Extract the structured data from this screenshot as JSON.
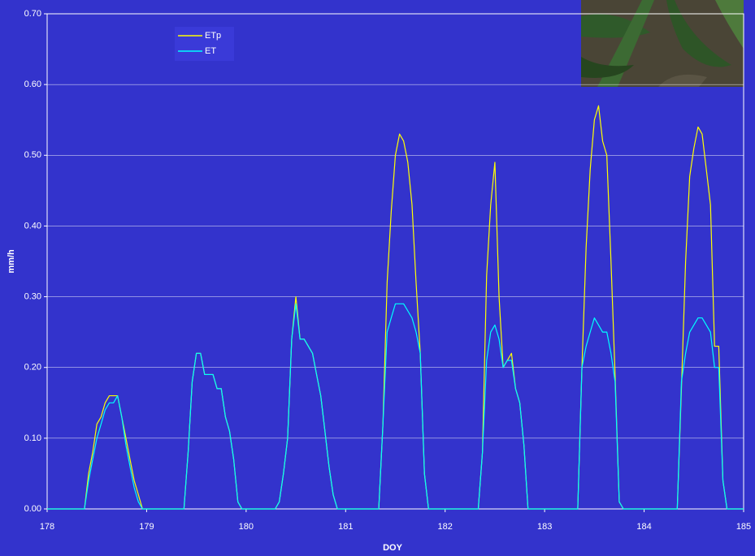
{
  "chart_data": {
    "type": "line",
    "xlabel": "DOY",
    "ylabel": "mm/h",
    "xlim": [
      178,
      185
    ],
    "ylim": [
      0,
      0.7
    ],
    "xticks": [
      178,
      179,
      180,
      181,
      182,
      183,
      184,
      185
    ],
    "yticks": [
      {
        "value": 0,
        "label": "0.00"
      },
      {
        "value": 0.1,
        "label": "0.10"
      },
      {
        "value": 0.2,
        "label": "0.20"
      },
      {
        "value": 0.3,
        "label": "0.30"
      },
      {
        "value": 0.4,
        "label": "0.40"
      },
      {
        "value": 0.5,
        "label": "0.50"
      },
      {
        "value": 0.6,
        "label": "0.60"
      },
      {
        "value": 0.7,
        "label": "0.70"
      }
    ],
    "grid": true,
    "legend": "upper left",
    "x": [
      178,
      178.042,
      178.083,
      178.125,
      178.167,
      178.208,
      178.25,
      178.292,
      178.333,
      178.375,
      178.417,
      178.458,
      178.5,
      178.542,
      178.583,
      178.625,
      178.667,
      178.708,
      178.75,
      178.792,
      178.833,
      178.875,
      178.917,
      178.958,
      179,
      179.042,
      179.083,
      179.125,
      179.167,
      179.208,
      179.25,
      179.292,
      179.333,
      179.375,
      179.417,
      179.458,
      179.5,
      179.542,
      179.583,
      179.625,
      179.667,
      179.708,
      179.75,
      179.792,
      179.833,
      179.875,
      179.917,
      179.958,
      180,
      180.042,
      180.083,
      180.125,
      180.167,
      180.208,
      180.25,
      180.292,
      180.333,
      180.375,
      180.417,
      180.458,
      180.5,
      180.542,
      180.583,
      180.625,
      180.667,
      180.708,
      180.75,
      180.792,
      180.833,
      180.875,
      180.917,
      180.958,
      181,
      181.042,
      181.083,
      181.125,
      181.167,
      181.208,
      181.25,
      181.292,
      181.333,
      181.375,
      181.417,
      181.458,
      181.5,
      181.542,
      181.583,
      181.625,
      181.667,
      181.708,
      181.75,
      181.792,
      181.833,
      181.875,
      181.917,
      181.958,
      182,
      182.042,
      182.083,
      182.125,
      182.167,
      182.208,
      182.25,
      182.292,
      182.333,
      182.375,
      182.417,
      182.458,
      182.5,
      182.542,
      182.583,
      182.625,
      182.667,
      182.708,
      182.75,
      182.792,
      182.833,
      182.875,
      182.917,
      182.958,
      183,
      183.042,
      183.083,
      183.125,
      183.167,
      183.208,
      183.25,
      183.292,
      183.333,
      183.375,
      183.417,
      183.458,
      183.5,
      183.542,
      183.583,
      183.625,
      183.667,
      183.708,
      183.75,
      183.792,
      183.833,
      183.875,
      183.917,
      183.958,
      184,
      184.042,
      184.083,
      184.125,
      184.167,
      184.208,
      184.25,
      184.292,
      184.333,
      184.375,
      184.417,
      184.458,
      184.5,
      184.542,
      184.583,
      184.625,
      184.667,
      184.708,
      184.75,
      184.792,
      184.833,
      184.875,
      184.917,
      184.958,
      185
    ],
    "series": [
      {
        "name": "ETp",
        "color": "#ffff00",
        "values": [
          0,
          0,
          0,
          0,
          0,
          0,
          0,
          0,
          0,
          0,
          0.05,
          0.08,
          0.12,
          0.13,
          0.15,
          0.16,
          0.16,
          0.16,
          0.13,
          0.1,
          0.07,
          0.04,
          0.02,
          0,
          0,
          0,
          0,
          0,
          0,
          0,
          0,
          0,
          0,
          0,
          0.08,
          0.18,
          0.22,
          0.22,
          0.19,
          0.19,
          0.19,
          0.17,
          0.17,
          0.13,
          0.11,
          0.07,
          0.01,
          0,
          0,
          0,
          0,
          0,
          0,
          0,
          0,
          0,
          0.01,
          0.05,
          0.1,
          0.24,
          0.3,
          0.24,
          0.24,
          0.23,
          0.22,
          0.19,
          0.16,
          0.11,
          0.06,
          0.02,
          0,
          0,
          0,
          0,
          0,
          0,
          0,
          0,
          0,
          0,
          0,
          0.12,
          0.32,
          0.42,
          0.5,
          0.53,
          0.52,
          0.49,
          0.43,
          0.32,
          0.22,
          0.05,
          0,
          0,
          0,
          0,
          0,
          0,
          0,
          0,
          0,
          0,
          0,
          0,
          0,
          0.08,
          0.33,
          0.43,
          0.49,
          0.3,
          0.2,
          0.21,
          0.22,
          0.17,
          0.15,
          0.09,
          0,
          0,
          0,
          0,
          0,
          0,
          0,
          0,
          0,
          0,
          0,
          0,
          0,
          0.2,
          0.37,
          0.48,
          0.55,
          0.57,
          0.52,
          0.5,
          0.35,
          0.19,
          0.01,
          0,
          0,
          0,
          0,
          0,
          0,
          0,
          0,
          0,
          0,
          0,
          0,
          0,
          0,
          0.17,
          0.35,
          0.47,
          0.51,
          0.54,
          0.53,
          0.48,
          0.43,
          0.23,
          0.23,
          0.04,
          0,
          0,
          0,
          0,
          0
        ]
      },
      {
        "name": "ET",
        "color": "#00ffff",
        "values": [
          0,
          0,
          0,
          0,
          0,
          0,
          0,
          0,
          0,
          0,
          0.04,
          0.07,
          0.1,
          0.12,
          0.14,
          0.15,
          0.15,
          0.16,
          0.13,
          0.09,
          0.06,
          0.03,
          0.01,
          0,
          0,
          0,
          0,
          0,
          0,
          0,
          0,
          0,
          0,
          0,
          0.08,
          0.18,
          0.22,
          0.22,
          0.19,
          0.19,
          0.19,
          0.17,
          0.17,
          0.13,
          0.11,
          0.07,
          0.01,
          0,
          0,
          0,
          0,
          0,
          0,
          0,
          0,
          0,
          0.01,
          0.05,
          0.1,
          0.24,
          0.29,
          0.24,
          0.24,
          0.23,
          0.22,
          0.19,
          0.16,
          0.11,
          0.06,
          0.02,
          0,
          0,
          0,
          0,
          0,
          0,
          0,
          0,
          0,
          0,
          0,
          0.12,
          0.25,
          0.27,
          0.29,
          0.29,
          0.29,
          0.28,
          0.27,
          0.25,
          0.22,
          0.05,
          0,
          0,
          0,
          0,
          0,
          0,
          0,
          0,
          0,
          0,
          0,
          0,
          0,
          0.08,
          0.21,
          0.25,
          0.26,
          0.24,
          0.2,
          0.21,
          0.21,
          0.17,
          0.15,
          0.09,
          0,
          0,
          0,
          0,
          0,
          0,
          0,
          0,
          0,
          0,
          0,
          0,
          0,
          0.2,
          0.23,
          0.25,
          0.27,
          0.26,
          0.25,
          0.25,
          0.22,
          0.18,
          0.01,
          0,
          0,
          0,
          0,
          0,
          0,
          0,
          0,
          0,
          0,
          0,
          0,
          0,
          0,
          0.18,
          0.22,
          0.25,
          0.26,
          0.27,
          0.27,
          0.26,
          0.25,
          0.2,
          0.2,
          0.04,
          0,
          0,
          0,
          0,
          0
        ]
      }
    ]
  }
}
